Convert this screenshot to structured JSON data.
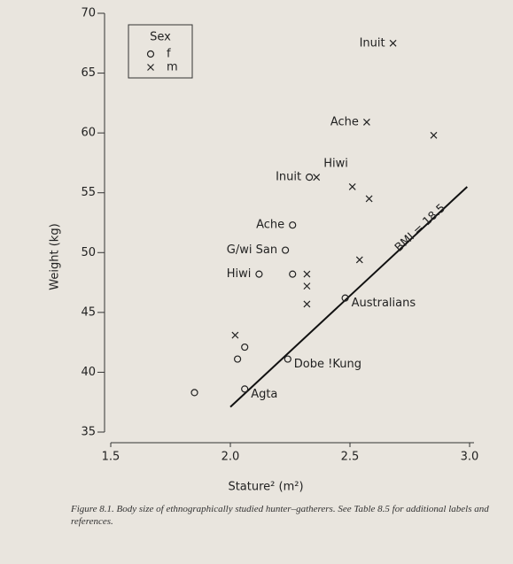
{
  "chart_data": {
    "type": "scatter",
    "xlabel": "Stature² (m²)",
    "ylabel": "Weight (kg)",
    "xlim": [
      1.5,
      3.0
    ],
    "xticks": [
      1.5,
      {
        "value": 2,
        "label": "2.0"
      },
      2.5,
      {
        "value": 3,
        "label": "3.0"
      }
    ],
    "ylim": [
      35,
      70
    ],
    "yticks": [
      35,
      40,
      45,
      50,
      55,
      60,
      65,
      70
    ],
    "legend_title": "Sex",
    "legend": "upper left",
    "series": [
      {
        "name": "f",
        "marker": "circle",
        "color": "#222222",
        "x": [
          1.85,
          2.06,
          2.03,
          2.06,
          2.24,
          2.48,
          2.12,
          2.26,
          2.23,
          2.26,
          2.33
        ],
        "values": [
          38.3,
          38.6,
          41.1,
          42.1,
          41.1,
          46.2,
          48.2,
          48.2,
          50.2,
          52.3,
          56.3
        ],
        "labels": [
          null,
          "Agta",
          null,
          null,
          "Dobe !Kung",
          "Australians",
          "Hiwi",
          null,
          "G/wi San",
          "Ache",
          "Inuit"
        ]
      },
      {
        "name": "m",
        "marker": "cross",
        "color": "#222222",
        "x": [
          2.02,
          2.32,
          2.32,
          2.32,
          2.54,
          2.36,
          2.51,
          2.58,
          2.85,
          2.57,
          2.68
        ],
        "values": [
          43.1,
          45.7,
          47.2,
          48.2,
          49.4,
          56.3,
          55.5,
          54.5,
          59.8,
          60.9,
          67.5
        ],
        "labels": [
          null,
          null,
          null,
          null,
          null,
          "Hiwi",
          null,
          null,
          null,
          "Ache",
          "Inuit"
        ]
      }
    ],
    "reference_line": {
      "label": "BMI = 18.5",
      "x": [
        2.0,
        2.99
      ],
      "values": [
        37.1,
        55.5
      ]
    },
    "caption": "Figure 8.1. Body size of ethnographically studied hunter–gatherers. See Table 8.5 for additional labels and references."
  }
}
